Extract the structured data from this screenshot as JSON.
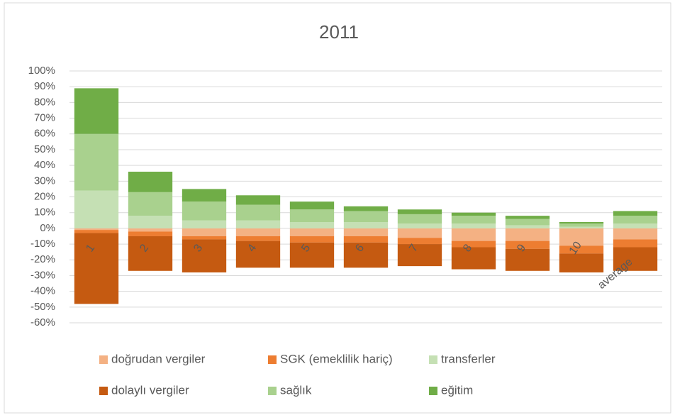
{
  "chart_data": {
    "type": "stacked_bar",
    "title": "2011",
    "categories": [
      "1",
      "2",
      "3",
      "4",
      "5",
      "6",
      "7",
      "8",
      "9",
      "10",
      "average"
    ],
    "series": [
      {
        "name": "doğrudan vergiler",
        "color": "#f4b183",
        "values": [
          -1,
          -2,
          -5,
          -5,
          -5,
          -5,
          -6,
          -8,
          -8,
          -11,
          -7
        ]
      },
      {
        "name": "SGK (emeklilik hariç)",
        "color": "#ed7d31",
        "values": [
          -2,
          -3,
          -2,
          -3,
          -4,
          -4,
          -4,
          -4,
          -5,
          -5,
          -5
        ]
      },
      {
        "name": "transferler",
        "color": "#c5e0b4",
        "values": [
          24,
          8,
          5,
          5,
          4,
          4,
          3,
          3,
          2,
          1,
          3
        ]
      },
      {
        "name": "dolaylı vergiler",
        "color": "#c55a11",
        "values": [
          -45,
          -22,
          -21,
          -17,
          -16,
          -16,
          -14,
          -14,
          -14,
          -12,
          -15
        ]
      },
      {
        "name": "sağlık",
        "color": "#a9d18e",
        "values": [
          36,
          15,
          12,
          10,
          8,
          7,
          6,
          5,
          4,
          2,
          5
        ]
      },
      {
        "name": "eğitim",
        "color": "#70ad47",
        "values": [
          29,
          13,
          8,
          6,
          5,
          3,
          3,
          2,
          2,
          1,
          3
        ]
      }
    ],
    "ylim": [
      -60,
      100
    ],
    "yticks": [
      {
        "value": -60,
        "label": "-60%"
      },
      {
        "value": -50,
        "label": "-50%"
      },
      {
        "value": -40,
        "label": "-40%"
      },
      {
        "value": -30,
        "label": "-30%"
      },
      {
        "value": -20,
        "label": "-20%"
      },
      {
        "value": -10,
        "label": "-10%"
      },
      {
        "value": 0,
        "label": "0%"
      },
      {
        "value": 10,
        "label": "10%"
      },
      {
        "value": 20,
        "label": "20%"
      },
      {
        "value": 30,
        "label": "30%"
      },
      {
        "value": 40,
        "label": "40%"
      },
      {
        "value": 50,
        "label": "50%"
      },
      {
        "value": 60,
        "label": "60%"
      },
      {
        "value": 70,
        "label": "70%"
      },
      {
        "value": 80,
        "label": "80%"
      },
      {
        "value": 90,
        "label": "90%"
      },
      {
        "value": 100,
        "label": "100%"
      }
    ],
    "grid": true,
    "legend": "bottom"
  }
}
